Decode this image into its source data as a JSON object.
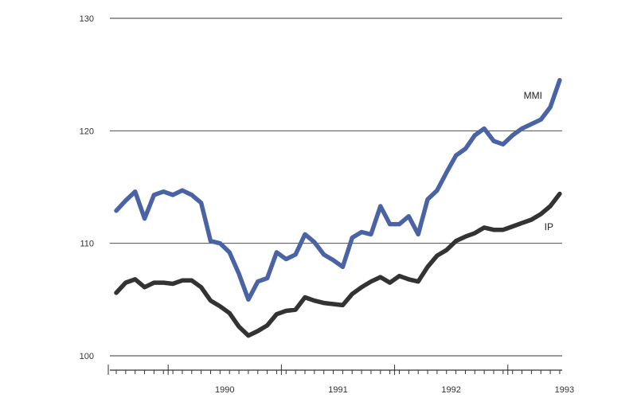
{
  "chart_data": {
    "type": "line",
    "title": "",
    "xlabel": "",
    "ylabel": "",
    "ylim": [
      100,
      130
    ],
    "yticks": [
      100,
      110,
      120,
      130
    ],
    "grid": true,
    "x_start": "1989-07",
    "x_end": "1993-06",
    "year_labels": [
      {
        "label": "1990",
        "year": 1990
      },
      {
        "label": "1991",
        "year": 1991
      },
      {
        "label": "1992",
        "year": 1992
      },
      {
        "label": "1993",
        "year": 1993
      }
    ],
    "series": [
      {
        "name": "MMI",
        "color": "#4a63a4",
        "x": [
          "1989-07",
          "1989-08",
          "1989-09",
          "1989-10",
          "1989-11",
          "1989-12",
          "1990-01",
          "1990-02",
          "1990-03",
          "1990-04",
          "1990-05",
          "1990-06",
          "1990-07",
          "1990-08",
          "1990-09",
          "1990-10",
          "1990-11",
          "1990-12",
          "1991-01",
          "1991-02",
          "1991-03",
          "1991-04",
          "1991-05",
          "1991-06",
          "1991-07",
          "1991-08",
          "1991-09",
          "1991-10",
          "1991-11",
          "1991-12",
          "1992-01",
          "1992-02",
          "1992-03",
          "1992-04",
          "1992-05",
          "1992-06",
          "1992-07",
          "1992-08",
          "1992-09",
          "1992-10",
          "1992-11",
          "1992-12",
          "1993-01",
          "1993-02",
          "1993-03",
          "1993-04",
          "1993-05",
          "1993-06"
        ],
        "values": [
          112.9,
          113.8,
          114.6,
          112.2,
          114.3,
          114.6,
          114.3,
          114.7,
          114.3,
          113.6,
          110.2,
          110.0,
          109.2,
          107.3,
          105.0,
          106.6,
          106.9,
          109.2,
          108.6,
          109.0,
          110.8,
          110.1,
          109.0,
          108.5,
          107.9,
          110.5,
          111.0,
          110.8,
          113.3,
          111.7,
          111.7,
          112.4,
          110.8,
          113.9,
          114.7,
          116.3,
          117.8,
          118.4,
          119.6,
          120.2,
          119.1,
          118.8,
          119.6,
          120.2,
          120.6,
          121.0,
          122.1,
          124.5
        ]
      },
      {
        "name": "IP",
        "color": "#333333",
        "x": [
          "1989-07",
          "1989-08",
          "1989-09",
          "1989-10",
          "1989-11",
          "1989-12",
          "1990-01",
          "1990-02",
          "1990-03",
          "1990-04",
          "1990-05",
          "1990-06",
          "1990-07",
          "1990-08",
          "1990-09",
          "1990-10",
          "1990-11",
          "1990-12",
          "1991-01",
          "1991-02",
          "1991-03",
          "1991-04",
          "1991-05",
          "1991-06",
          "1991-07",
          "1991-08",
          "1991-09",
          "1991-10",
          "1991-11",
          "1991-12",
          "1992-01",
          "1992-02",
          "1992-03",
          "1992-04",
          "1992-05",
          "1992-06",
          "1992-07",
          "1992-08",
          "1992-09",
          "1992-10",
          "1992-11",
          "1992-12",
          "1993-01",
          "1993-02",
          "1993-03",
          "1993-04",
          "1993-05",
          "1993-06"
        ],
        "values": [
          105.6,
          106.5,
          106.8,
          106.1,
          106.5,
          106.5,
          106.4,
          106.7,
          106.7,
          106.1,
          104.9,
          104.4,
          103.8,
          102.6,
          101.8,
          102.2,
          102.7,
          103.7,
          104.0,
          104.1,
          105.2,
          104.9,
          104.7,
          104.6,
          104.5,
          105.5,
          106.1,
          106.6,
          107.0,
          106.5,
          107.1,
          106.8,
          106.6,
          107.9,
          108.9,
          109.4,
          110.2,
          110.6,
          110.9,
          111.4,
          111.2,
          111.2,
          111.5,
          111.8,
          112.1,
          112.6,
          113.3,
          114.4
        ]
      }
    ]
  }
}
